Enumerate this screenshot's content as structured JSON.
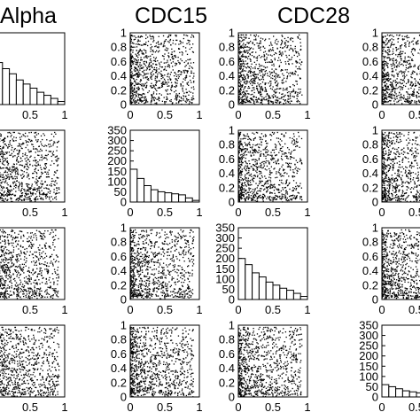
{
  "chart_data": {
    "type": "scatter",
    "columns": [
      "Alpha",
      "CDC15",
      "CDC28",
      ""
    ],
    "colors": {
      "points": "#000000",
      "bars": "#ffffff",
      "frame": "#000000",
      "background": "#ffffff"
    },
    "scatter_axes": {
      "xlim": [
        0,
        1
      ],
      "ylim": [
        0,
        1
      ],
      "x_ticks": [
        0,
        0.5,
        1
      ],
      "x_tick_labels": [
        "0",
        "0.5",
        "1"
      ],
      "y_ticks": [
        0,
        0.2,
        0.4,
        0.6,
        0.8,
        1
      ],
      "y_tick_labels": [
        "0",
        "0.2",
        "0.4",
        "0.6",
        "0.8",
        "1"
      ],
      "grid": false
    },
    "histogram_axes": {
      "xlim": [
        0,
        1
      ],
      "ylim": [
        0,
        350
      ],
      "x_ticks": [
        0,
        0.5,
        1
      ],
      "x_tick_labels": [
        "0",
        "0.5",
        "1"
      ],
      "y_ticks": [
        0,
        50,
        100,
        150,
        200,
        250,
        300,
        350
      ],
      "y_tick_labels": [
        "0",
        "50",
        "100",
        "150",
        "200",
        "250",
        "300",
        "350"
      ],
      "bin_edges": [
        0,
        0.1,
        0.2,
        0.3,
        0.4,
        0.5,
        0.6,
        0.7,
        0.8,
        0.9,
        1.0
      ],
      "grid": false
    },
    "panels": [
      {
        "row": 0,
        "col": 0,
        "kind": "histogram",
        "counts": [
          205,
          175,
          150,
          120,
          100,
          80,
          60,
          45,
          30,
          15
        ]
      },
      {
        "row": 0,
        "col": 1,
        "kind": "scatter",
        "n": 900,
        "seed": 11
      },
      {
        "row": 0,
        "col": 2,
        "kind": "scatter",
        "n": 900,
        "seed": 12
      },
      {
        "row": 0,
        "col": 3,
        "kind": "scatter",
        "n": 900,
        "seed": 13
      },
      {
        "row": 1,
        "col": 0,
        "kind": "scatter",
        "n": 900,
        "seed": 21
      },
      {
        "row": 1,
        "col": 1,
        "kind": "histogram",
        "counts": [
          160,
          115,
          80,
          60,
          50,
          45,
          40,
          35,
          20,
          8
        ]
      },
      {
        "row": 1,
        "col": 2,
        "kind": "scatter",
        "n": 900,
        "seed": 23
      },
      {
        "row": 1,
        "col": 3,
        "kind": "scatter",
        "n": 900,
        "seed": 24
      },
      {
        "row": 2,
        "col": 0,
        "kind": "scatter",
        "n": 900,
        "seed": 31
      },
      {
        "row": 2,
        "col": 1,
        "kind": "scatter",
        "n": 900,
        "seed": 32
      },
      {
        "row": 2,
        "col": 2,
        "kind": "histogram",
        "counts": [
          200,
          170,
          130,
          110,
          85,
          70,
          55,
          45,
          30,
          15
        ]
      },
      {
        "row": 2,
        "col": 3,
        "kind": "scatter",
        "n": 900,
        "seed": 34
      },
      {
        "row": 3,
        "col": 0,
        "kind": "scatter",
        "n": 900,
        "seed": 41
      },
      {
        "row": 3,
        "col": 1,
        "kind": "scatter",
        "n": 900,
        "seed": 42
      },
      {
        "row": 3,
        "col": 2,
        "kind": "scatter",
        "n": 900,
        "seed": 43
      },
      {
        "row": 3,
        "col": 3,
        "kind": "histogram",
        "counts": [
          60,
          50,
          40,
          30,
          25,
          20,
          15,
          10,
          8,
          5
        ]
      }
    ]
  }
}
